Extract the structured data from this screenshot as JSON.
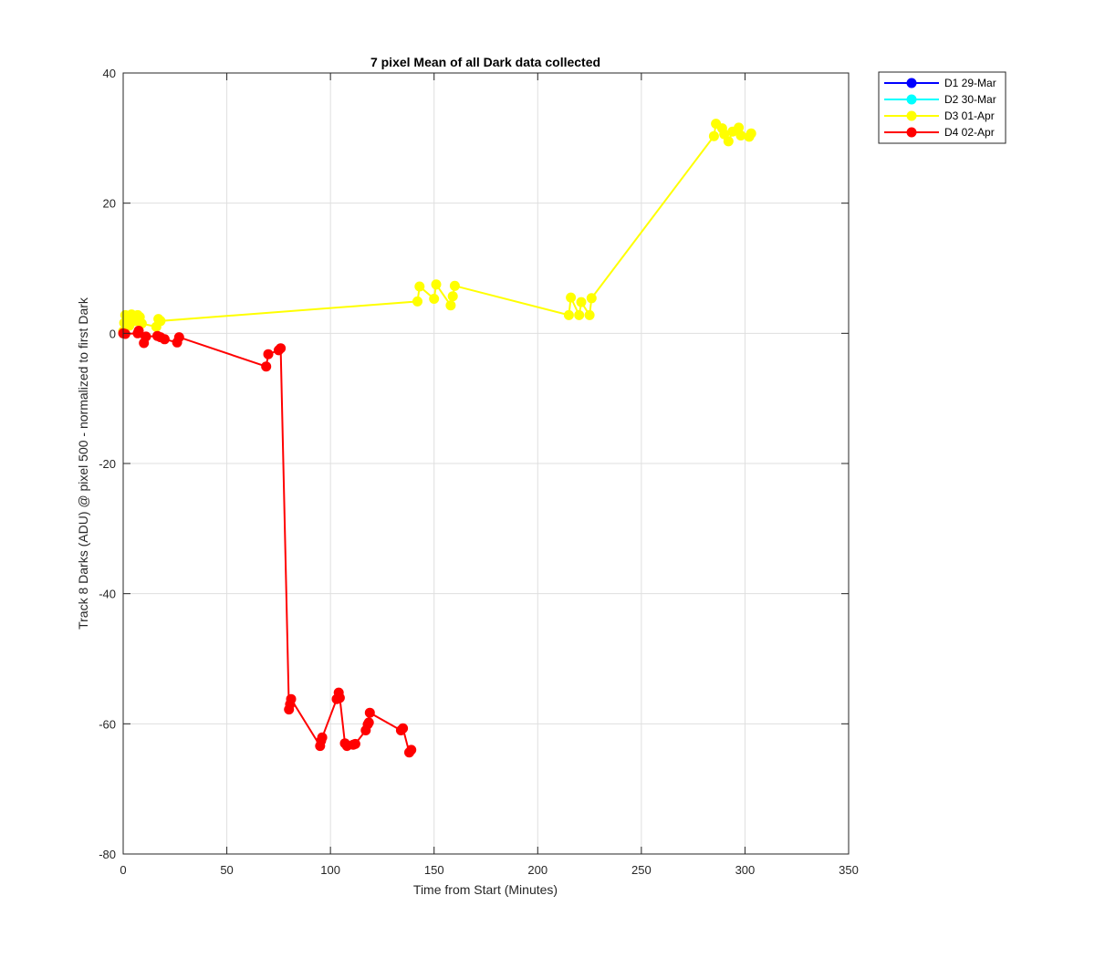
{
  "chart_data": {
    "type": "line",
    "title": "7 pixel Mean of all Dark data collected",
    "xlabel": "Time from Start (Minutes)",
    "ylabel": "Track 8 Darks (ADU) @ pixel 500 - normalized to first Dark",
    "xlim": [
      0,
      350
    ],
    "ylim": [
      -80,
      40
    ],
    "xticks": [
      0,
      50,
      100,
      150,
      200,
      250,
      300,
      350
    ],
    "yticks": [
      -80,
      -60,
      -40,
      -20,
      0,
      20,
      40
    ],
    "grid": true,
    "legend_position": "outside-top-right",
    "series": [
      {
        "name": "D1 29-Mar",
        "color": "#0000ff",
        "points": []
      },
      {
        "name": "D2 30-Mar",
        "color": "#00ffff",
        "points": []
      },
      {
        "name": "D3 01-Apr",
        "color": "#ffff00",
        "points": [
          [
            0,
            0.3
          ],
          [
            0.5,
            1.6
          ],
          [
            1,
            2.8
          ],
          [
            1.5,
            1.5
          ],
          [
            2,
            2.4
          ],
          [
            3,
            1.2
          ],
          [
            4,
            2.9
          ],
          [
            5,
            2.2
          ],
          [
            6,
            1.9
          ],
          [
            7,
            2.8
          ],
          [
            8,
            2.5
          ],
          [
            9,
            1.5
          ],
          [
            16,
            1.0
          ],
          [
            17,
            2.2
          ],
          [
            18,
            1.9
          ],
          [
            142,
            4.9
          ],
          [
            143,
            7.2
          ],
          [
            150,
            5.3
          ],
          [
            151,
            7.5
          ],
          [
            158,
            4.3
          ],
          [
            159,
            5.7
          ],
          [
            160,
            7.3
          ],
          [
            215,
            2.8
          ],
          [
            216,
            5.5
          ],
          [
            220,
            2.8
          ],
          [
            221,
            4.8
          ],
          [
            225,
            2.8
          ],
          [
            226,
            5.4
          ],
          [
            285,
            30.3
          ],
          [
            286,
            32.2
          ],
          [
            289,
            31.5
          ],
          [
            290,
            30.6
          ],
          [
            292,
            29.5
          ],
          [
            294,
            31.0
          ],
          [
            297,
            31.6
          ],
          [
            298,
            30.4
          ],
          [
            302,
            30.2
          ],
          [
            303,
            30.7
          ]
        ]
      },
      {
        "name": "D4 02-Apr",
        "color": "#ff0000",
        "points": [
          [
            0,
            0.0
          ],
          [
            1,
            -0.1
          ],
          [
            7,
            0.0
          ],
          [
            7.5,
            0.4
          ],
          [
            10,
            -1.5
          ],
          [
            11,
            -0.5
          ],
          [
            16.5,
            -0.4
          ],
          [
            18,
            -0.6
          ],
          [
            20,
            -0.9
          ],
          [
            26,
            -1.4
          ],
          [
            27,
            -0.6
          ],
          [
            69,
            -5.1
          ],
          [
            70,
            -3.2
          ],
          [
            75,
            -2.6
          ],
          [
            76,
            -2.3
          ],
          [
            80,
            -57.8
          ],
          [
            80.5,
            -57.0
          ],
          [
            81,
            -56.2
          ],
          [
            95,
            -63.4
          ],
          [
            95.5,
            -62.6
          ],
          [
            96,
            -62.1
          ],
          [
            103,
            -56.2
          ],
          [
            104,
            -55.2
          ],
          [
            104.5,
            -56.0
          ],
          [
            107,
            -63.0
          ],
          [
            108,
            -63.4
          ],
          [
            111,
            -63.2
          ],
          [
            112,
            -63.1
          ],
          [
            117,
            -61.0
          ],
          [
            118,
            -60.1
          ],
          [
            118.5,
            -59.8
          ],
          [
            119,
            -58.3
          ],
          [
            134,
            -61.0
          ],
          [
            135,
            -60.7
          ],
          [
            138,
            -64.4
          ],
          [
            139,
            -64.0
          ]
        ]
      }
    ]
  }
}
